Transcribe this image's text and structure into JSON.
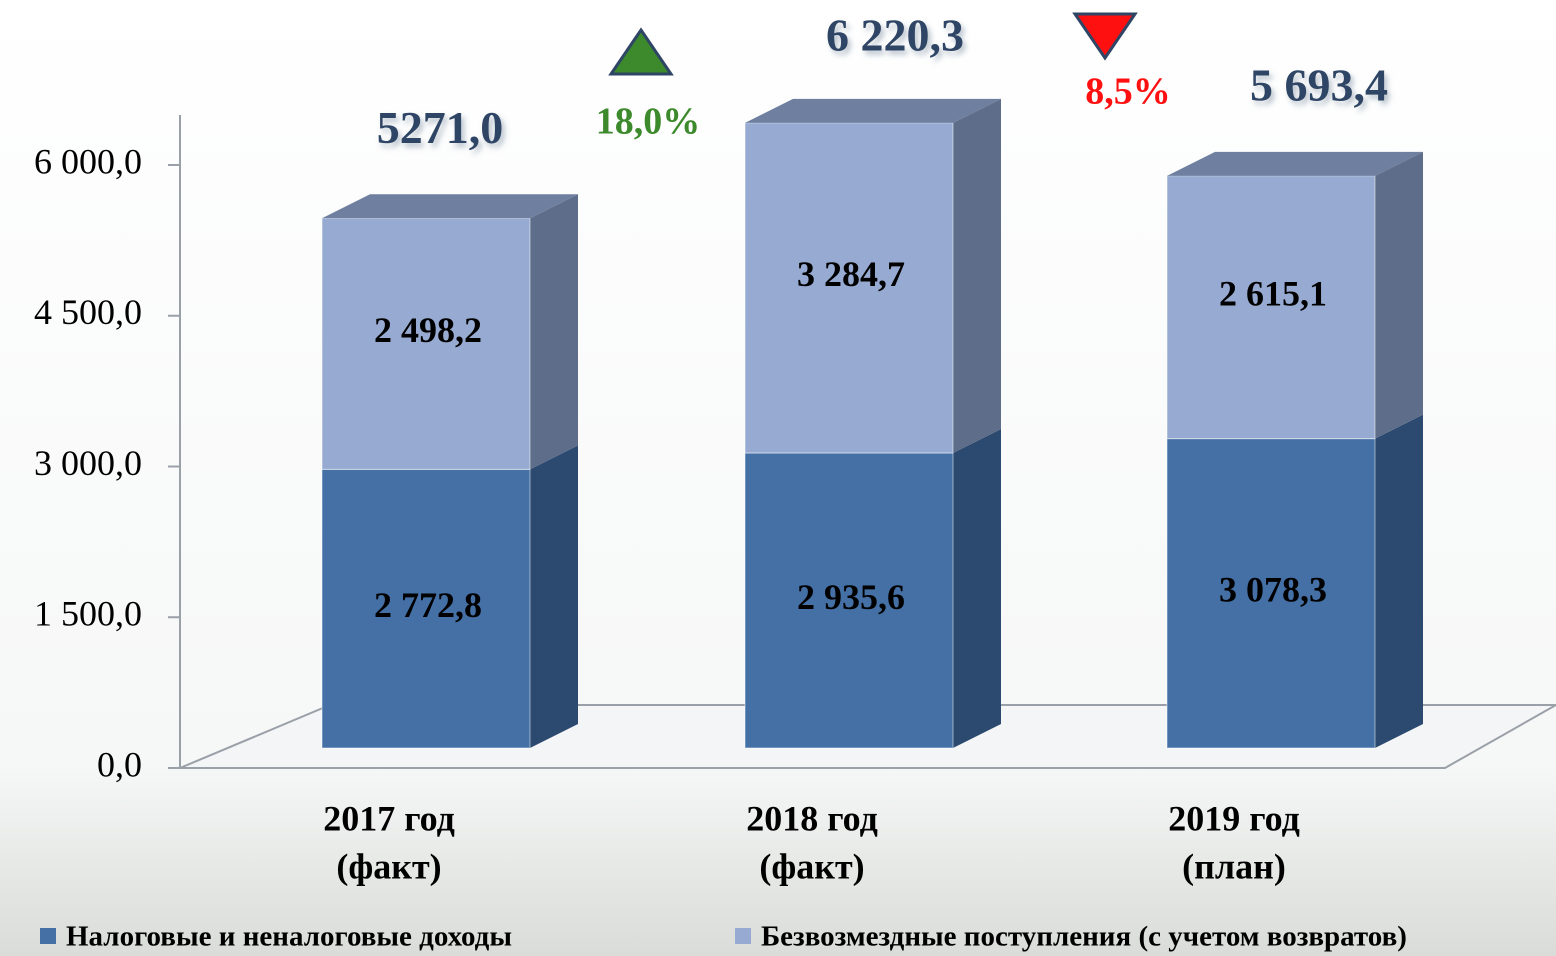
{
  "chart_data": {
    "type": "bar3d_stacked",
    "categories": [
      [
        "2017 год",
        "(факт)"
      ],
      [
        "2018 год",
        "(факт)"
      ],
      [
        "2019 год",
        "(план)"
      ]
    ],
    "series": [
      {
        "name": "Налоговые и неналоговые доходы",
        "color": "#4470a6",
        "side_color": "#2c4a6f",
        "values": [
          2772.8,
          2935.6,
          3078.3
        ],
        "value_labels": [
          "2 772,8",
          "2 935,6",
          "3 078,3"
        ]
      },
      {
        "name": "Безвозмездные поступления (с учетом возвратов)",
        "color": "#97aad1",
        "side_color": "#5e6d89",
        "values": [
          2498.2,
          3284.7,
          2615.1
        ],
        "value_labels": [
          "2 498,2",
          "3 284,7",
          "2 615,1"
        ]
      }
    ],
    "top_color": "#6f7fa0",
    "totals": [
      5271.0,
      6220.3,
      5693.4
    ],
    "totals_labels": [
      "5271,0",
      "6 220,3",
      "5 693,4"
    ],
    "annotations": [
      {
        "label": "18,0%",
        "arrow": "up",
        "color": "#3d8a2c"
      },
      {
        "label": "8,5%",
        "arrow": "down",
        "color": "#ff1010"
      }
    ],
    "ylim": [
      0,
      6500
    ],
    "yticks": [
      {
        "value": 0,
        "label": "0,0"
      },
      {
        "value": 1500,
        "label": "1 500,0"
      },
      {
        "value": 3000,
        "label": "3 000,0"
      },
      {
        "value": 4500,
        "label": "4 500,0"
      },
      {
        "value": 6000,
        "label": "6 000,0"
      }
    ],
    "legend": "bottom"
  }
}
